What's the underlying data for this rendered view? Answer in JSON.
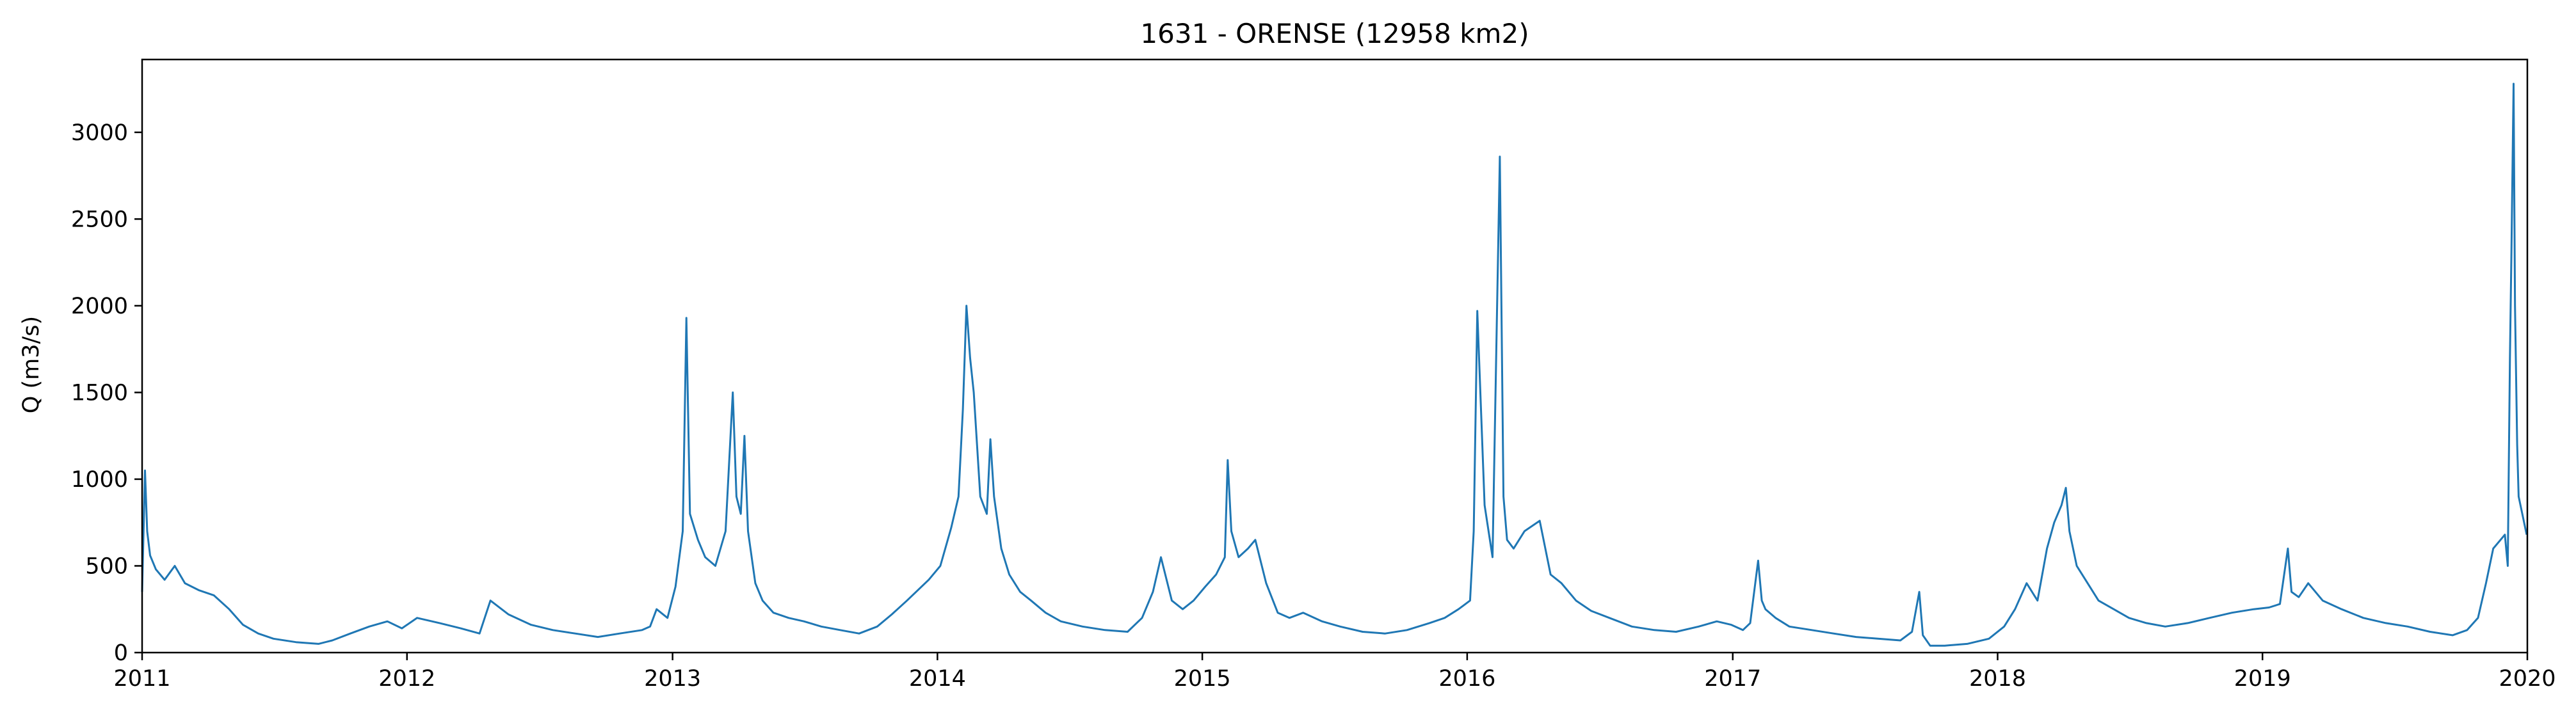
{
  "chart_data": {
    "type": "line",
    "title": "1631 - ORENSE (12958 km2)",
    "xlabel": "",
    "ylabel": "Q (m3/s)",
    "xlim": [
      "2011-01-01",
      "2020-01-01"
    ],
    "ylim": [
      0,
      3420
    ],
    "xticks": [
      "2011",
      "2012",
      "2013",
      "2014",
      "2015",
      "2016",
      "2017",
      "2018",
      "2019",
      "2020"
    ],
    "yticks": [
      0,
      500,
      1000,
      1500,
      2000,
      2500,
      3000
    ],
    "grid": false,
    "line_color": "#1f77b4",
    "series": [
      {
        "x": [
          "2011-01-01",
          "2011-01-05",
          "2011-01-08",
          "2011-01-12",
          "2011-01-20",
          "2011-02-01",
          "2011-02-15",
          "2011-03-01",
          "2011-03-20",
          "2011-04-10",
          "2011-05-01",
          "2011-05-20",
          "2011-06-10",
          "2011-07-01",
          "2011-08-01",
          "2011-09-01",
          "2011-09-20",
          "2011-10-15",
          "2011-11-10",
          "2011-12-05",
          "2011-12-25",
          "2012-01-15",
          "2012-02-15",
          "2012-03-15",
          "2012-04-10",
          "2012-04-25",
          "2012-05-20",
          "2012-06-20",
          "2012-07-20",
          "2012-08-20",
          "2012-09-20",
          "2012-10-20",
          "2012-11-20",
          "2012-12-01",
          "2012-12-10",
          "2012-12-25",
          "2013-01-05",
          "2013-01-15",
          "2013-01-20",
          "2013-01-25",
          "2013-02-05",
          "2013-02-15",
          "2013-03-01",
          "2013-03-15",
          "2013-03-25",
          "2013-03-30",
          "2013-04-05",
          "2013-04-10",
          "2013-04-15",
          "2013-04-25",
          "2013-05-05",
          "2013-05-20",
          "2013-06-10",
          "2013-07-01",
          "2013-07-25",
          "2013-08-20",
          "2013-09-15",
          "2013-10-10",
          "2013-10-30",
          "2013-11-20",
          "2013-12-05",
          "2013-12-20",
          "2014-01-05",
          "2014-01-20",
          "2014-01-30",
          "2014-02-05",
          "2014-02-10",
          "2014-02-15",
          "2014-02-20",
          "2014-03-01",
          "2014-03-10",
          "2014-03-15",
          "2014-03-20",
          "2014-03-30",
          "2014-04-10",
          "2014-04-25",
          "2014-05-10",
          "2014-05-30",
          "2014-06-20",
          "2014-07-20",
          "2014-08-20",
          "2014-09-20",
          "2014-10-10",
          "2014-10-25",
          "2014-11-05",
          "2014-11-20",
          "2014-12-05",
          "2014-12-20",
          "2015-01-05",
          "2015-01-20",
          "2015-02-01",
          "2015-02-05",
          "2015-02-10",
          "2015-02-20",
          "2015-03-05",
          "2015-03-15",
          "2015-03-30",
          "2015-04-15",
          "2015-05-01",
          "2015-05-20",
          "2015-06-15",
          "2015-07-10",
          "2015-08-10",
          "2015-09-10",
          "2015-10-10",
          "2015-11-10",
          "2015-12-01",
          "2015-12-20",
          "2016-01-05",
          "2016-01-10",
          "2016-01-15",
          "2016-01-25",
          "2016-02-05",
          "2016-02-15",
          "2016-02-20",
          "2016-02-25",
          "2016-03-05",
          "2016-03-20",
          "2016-04-10",
          "2016-04-25",
          "2016-05-10",
          "2016-05-30",
          "2016-06-20",
          "2016-07-15",
          "2016-08-15",
          "2016-09-15",
          "2016-10-15",
          "2016-11-15",
          "2016-12-10",
          "2016-12-30",
          "2017-01-15",
          "2017-01-25",
          "2017-02-05",
          "2017-02-10",
          "2017-02-15",
          "2017-03-01",
          "2017-03-20",
          "2017-04-20",
          "2017-05-20",
          "2017-06-20",
          "2017-07-20",
          "2017-08-20",
          "2017-09-05",
          "2017-09-15",
          "2017-09-20",
          "2017-09-30",
          "2017-10-20",
          "2017-11-20",
          "2017-12-20",
          "2018-01-10",
          "2018-01-25",
          "2018-02-10",
          "2018-02-25",
          "2018-03-10",
          "2018-03-20",
          "2018-03-30",
          "2018-04-05",
          "2018-04-10",
          "2018-04-20",
          "2018-05-05",
          "2018-05-20",
          "2018-06-10",
          "2018-07-01",
          "2018-07-25",
          "2018-08-20",
          "2018-09-20",
          "2018-10-20",
          "2018-11-20",
          "2018-12-20",
          "2019-01-10",
          "2019-01-25",
          "2019-02-05",
          "2019-02-10",
          "2019-02-20",
          "2019-03-05",
          "2019-03-25",
          "2019-04-20",
          "2019-05-20",
          "2019-06-20",
          "2019-07-20",
          "2019-08-20",
          "2019-09-20",
          "2019-10-10",
          "2019-10-25",
          "2019-11-05",
          "2019-11-15",
          "2019-11-25",
          "2019-12-01",
          "2019-12-05",
          "2019-12-08",
          "2019-12-10",
          "2019-12-13",
          "2019-12-15",
          "2019-12-18",
          "2019-12-20",
          "2019-12-25",
          "2019-12-31"
        ],
        "y": [
          350,
          1050,
          700,
          560,
          480,
          420,
          500,
          400,
          360,
          330,
          250,
          160,
          110,
          80,
          60,
          50,
          70,
          110,
          150,
          180,
          140,
          200,
          170,
          140,
          110,
          300,
          220,
          160,
          130,
          110,
          90,
          110,
          130,
          150,
          250,
          200,
          380,
          700,
          1930,
          800,
          650,
          550,
          500,
          700,
          1500,
          900,
          800,
          1250,
          700,
          400,
          300,
          230,
          200,
          180,
          150,
          130,
          110,
          150,
          220,
          300,
          360,
          420,
          500,
          720,
          900,
          1400,
          2000,
          1700,
          1500,
          900,
          800,
          1230,
          900,
          600,
          450,
          350,
          300,
          230,
          180,
          150,
          130,
          120,
          200,
          350,
          550,
          300,
          250,
          300,
          380,
          450,
          550,
          1110,
          700,
          550,
          600,
          650,
          400,
          230,
          200,
          230,
          180,
          150,
          120,
          110,
          130,
          170,
          200,
          250,
          300,
          700,
          1970,
          850,
          550,
          2860,
          900,
          650,
          600,
          700,
          760,
          450,
          400,
          300,
          240,
          200,
          150,
          130,
          120,
          150,
          180,
          160,
          130,
          170,
          530,
          300,
          250,
          200,
          150,
          130,
          110,
          90,
          80,
          70,
          120,
          350,
          100,
          40,
          40,
          50,
          80,
          150,
          250,
          400,
          300,
          600,
          750,
          850,
          950,
          700,
          500,
          400,
          300,
          250,
          200,
          170,
          150,
          170,
          200,
          230,
          250,
          260,
          280,
          600,
          350,
          320,
          400,
          300,
          250,
          200,
          170,
          150,
          120,
          100,
          130,
          200,
          400,
          600,
          650,
          680,
          500,
          1700,
          2300,
          3280,
          2000,
          1200,
          900,
          800,
          680
        ]
      }
    ]
  }
}
